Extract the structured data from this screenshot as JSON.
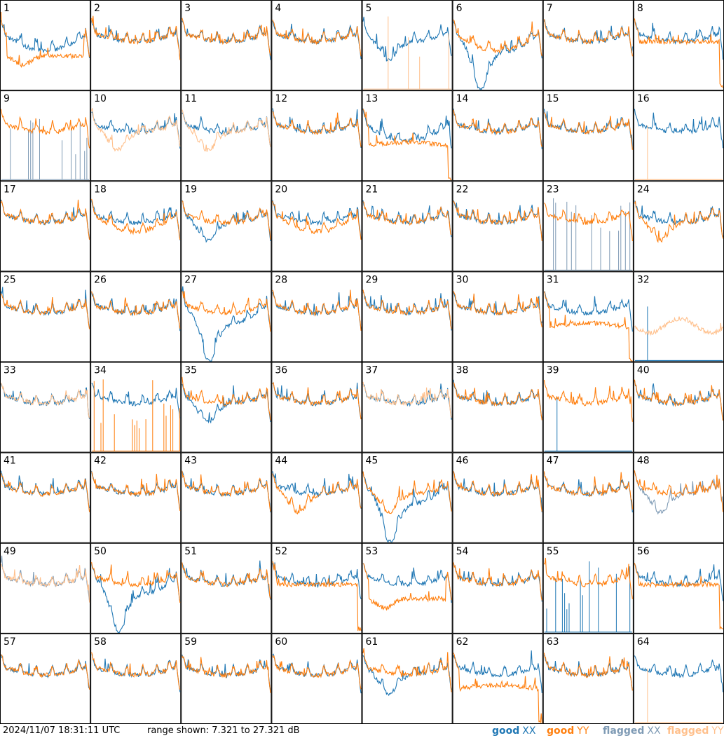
{
  "chart_data": {
    "type": "line",
    "layout": "8x8 grid of spectra, one panel per antenna",
    "unit": "dB",
    "range_db": [
      7.321,
      27.321
    ],
    "colors": {
      "good_xx": "#1f77b4",
      "good_yy": "#ff7f0e",
      "flagged_xx": "#7f9bb5",
      "flagged_yy": "#ffc08c"
    },
    "legend": [
      "good XX",
      "good YY",
      "flagged XX",
      "flagged YY"
    ],
    "antennas": [
      {
        "label": "1",
        "xx": "shifted",
        "yy": "dip-low",
        "flag": ""
      },
      {
        "label": "2",
        "xx": "normal",
        "yy": "normal",
        "flag": ""
      },
      {
        "label": "3",
        "xx": "normal",
        "yy": "normal",
        "flag": ""
      },
      {
        "label": "4",
        "xx": "normal",
        "yy": "normal",
        "flag": ""
      },
      {
        "label": "5",
        "xx": "dip",
        "yy": "spikes-faint",
        "flag": "yy"
      },
      {
        "label": "6",
        "xx": "dip-deep",
        "yy": "shifted",
        "flag": ""
      },
      {
        "label": "7",
        "xx": "normal",
        "yy": "normal",
        "flag": ""
      },
      {
        "label": "8",
        "xx": "normal",
        "yy": "flat",
        "flag": ""
      },
      {
        "label": "9",
        "xx": "spikes",
        "yy": "normal",
        "flag": "xx"
      },
      {
        "label": "10",
        "xx": "normal",
        "yy": "dip",
        "flag": "yy"
      },
      {
        "label": "11",
        "xx": "normal",
        "yy": "dip",
        "flag": "yy"
      },
      {
        "label": "12",
        "xx": "normal",
        "yy": "normal",
        "flag": ""
      },
      {
        "label": "13",
        "xx": "shifted",
        "yy": "flat-low",
        "flag": ""
      },
      {
        "label": "14",
        "xx": "normal",
        "yy": "normal",
        "flag": ""
      },
      {
        "label": "15",
        "xx": "normal",
        "yy": "normal",
        "flag": ""
      },
      {
        "label": "16",
        "xx": "normal",
        "yy": "flat-zero",
        "flag": "yy"
      },
      {
        "label": "17",
        "xx": "normal",
        "yy": "normal",
        "flag": ""
      },
      {
        "label": "18",
        "xx": "normal",
        "yy": "shifted",
        "flag": ""
      },
      {
        "label": "19",
        "xx": "dip",
        "yy": "normal",
        "flag": ""
      },
      {
        "label": "20",
        "xx": "normal",
        "yy": "shifted",
        "flag": ""
      },
      {
        "label": "21",
        "xx": "normal",
        "yy": "normal",
        "flag": ""
      },
      {
        "label": "22",
        "xx": "normal",
        "yy": "normal",
        "flag": ""
      },
      {
        "label": "23",
        "xx": "spikes",
        "yy": "normal",
        "flag": "xx"
      },
      {
        "label": "24",
        "xx": "normal",
        "yy": "dip",
        "flag": ""
      },
      {
        "label": "25",
        "xx": "normal",
        "yy": "normal",
        "flag": ""
      },
      {
        "label": "26",
        "xx": "normal",
        "yy": "normal",
        "flag": ""
      },
      {
        "label": "27",
        "xx": "dip-deep",
        "yy": "normal",
        "flag": ""
      },
      {
        "label": "28",
        "xx": "normal",
        "yy": "normal",
        "flag": ""
      },
      {
        "label": "29",
        "xx": "normal",
        "yy": "normal",
        "flag": ""
      },
      {
        "label": "30",
        "xx": "normal",
        "yy": "normal",
        "flag": ""
      },
      {
        "label": "31",
        "xx": "normal",
        "yy": "flat-low",
        "flag": ""
      },
      {
        "label": "32",
        "xx": "flat-zero",
        "yy": "noisy",
        "flag": "yy"
      },
      {
        "label": "33",
        "xx": "normal",
        "yy": "normal",
        "flag": "yy"
      },
      {
        "label": "34",
        "xx": "normal",
        "yy": "spikes",
        "flag": ""
      },
      {
        "label": "35",
        "xx": "dip",
        "yy": "normal",
        "flag": ""
      },
      {
        "label": "36",
        "xx": "normal",
        "yy": "normal",
        "flag": ""
      },
      {
        "label": "37",
        "xx": "normal",
        "yy": "normal",
        "flag": "yy"
      },
      {
        "label": "38",
        "xx": "normal",
        "yy": "normal",
        "flag": ""
      },
      {
        "label": "39",
        "xx": "flat-zero",
        "yy": "normal",
        "flag": ""
      },
      {
        "label": "40",
        "xx": "normal",
        "yy": "normal",
        "flag": ""
      },
      {
        "label": "41",
        "xx": "normal",
        "yy": "normal",
        "flag": ""
      },
      {
        "label": "42",
        "xx": "normal",
        "yy": "normal",
        "flag": ""
      },
      {
        "label": "43",
        "xx": "normal",
        "yy": "normal",
        "flag": ""
      },
      {
        "label": "44",
        "xx": "normal",
        "yy": "dip",
        "flag": ""
      },
      {
        "label": "45",
        "xx": "dip-deep",
        "yy": "dip",
        "flag": ""
      },
      {
        "label": "46",
        "xx": "normal",
        "yy": "normal",
        "flag": ""
      },
      {
        "label": "47",
        "xx": "normal",
        "yy": "normal",
        "flag": ""
      },
      {
        "label": "48",
        "xx": "dip",
        "yy": "normal",
        "flag": "xx"
      },
      {
        "label": "49",
        "xx": "normal",
        "yy": "normal",
        "flag": "both"
      },
      {
        "label": "50",
        "xx": "dip-deep",
        "yy": "normal",
        "flag": ""
      },
      {
        "label": "51",
        "xx": "normal",
        "yy": "normal",
        "flag": ""
      },
      {
        "label": "52",
        "xx": "normal",
        "yy": "flat",
        "flag": ""
      },
      {
        "label": "53",
        "xx": "normal",
        "yy": "dip-low",
        "flag": ""
      },
      {
        "label": "54",
        "xx": "normal",
        "yy": "normal",
        "flag": ""
      },
      {
        "label": "55",
        "xx": "spikes",
        "yy": "normal",
        "flag": ""
      },
      {
        "label": "56",
        "xx": "normal",
        "yy": "flat",
        "flag": ""
      },
      {
        "label": "57",
        "xx": "normal",
        "yy": "normal",
        "flag": ""
      },
      {
        "label": "58",
        "xx": "normal",
        "yy": "normal",
        "flag": ""
      },
      {
        "label": "59",
        "xx": "normal",
        "yy": "normal",
        "flag": ""
      },
      {
        "label": "60",
        "xx": "normal",
        "yy": "normal",
        "flag": ""
      },
      {
        "label": "61",
        "xx": "dip",
        "yy": "normal",
        "flag": ""
      },
      {
        "label": "62",
        "xx": "normal",
        "yy": "flat-low",
        "flag": ""
      },
      {
        "label": "63",
        "xx": "normal",
        "yy": "normal",
        "flag": ""
      },
      {
        "label": "64",
        "xx": "normal",
        "yy": "flat-zero",
        "flag": "yy"
      }
    ]
  },
  "footer": {
    "timestamp": "2024/11/07 18:31:11 UTC",
    "range_text": "range shown: 7.321 to 27.321 dB",
    "legend": {
      "good_xx_word": "good",
      "good_xx_pol": "XX",
      "good_yy_word": "good",
      "good_yy_pol": "YY",
      "flagged_xx_word": "flagged",
      "flagged_xx_pol": "XX",
      "flagged_yy_word": "flagged",
      "flagged_yy_pol": "YY"
    }
  }
}
